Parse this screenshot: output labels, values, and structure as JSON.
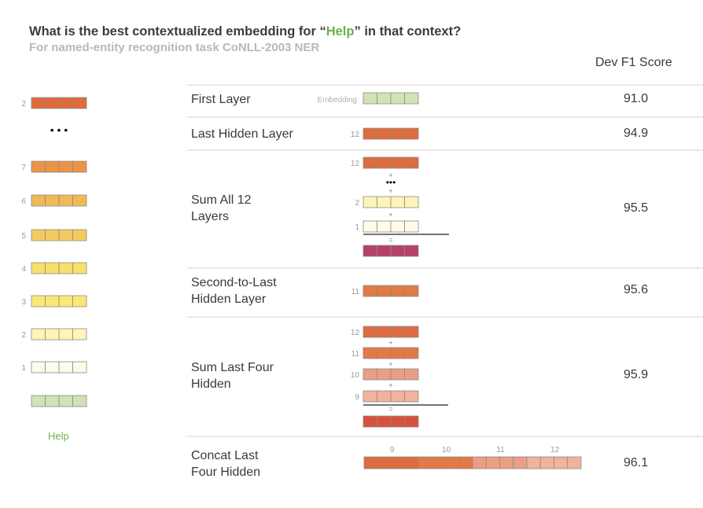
{
  "header": {
    "title_prefix": "What is the best contextualized embedding for “",
    "title_highlight": "Help",
    "title_suffix": "” in that context?",
    "subtitle": "For named-entity recognition task CoNLL-2003 NER",
    "score_header": "Dev F1 Score"
  },
  "colors": {
    "embedding": "#cfe3b4",
    "layer_1": "#fefbea",
    "layer_2": "#fdf4b8",
    "layer_3": "#fbe777",
    "layer_4": "#f8df69",
    "layer_5": "#f4cb5f",
    "layer_6": "#f1b956",
    "layer_7": "#ec9445",
    "layer_12": "#df6b3e",
    "layer_11": "#e37945",
    "layer_10": "#ec9e84",
    "layer_9": "#f0b49b",
    "sum_all_result": "#b5416a",
    "sum_last_four_result": "#d9513c",
    "highlight": "#6ab04c"
  },
  "stack": {
    "word": "Help",
    "dots": "• • •",
    "labels": [
      "2",
      "7",
      "6",
      "5",
      "4",
      "3",
      "2",
      "1"
    ]
  },
  "rows": [
    {
      "label": "First Layer",
      "score": "91.0",
      "embedding_label": "Embedding"
    },
    {
      "label": "Last Hidden Layer",
      "score": "94.9",
      "layer_label": "12"
    },
    {
      "label": "Sum All 12\nLayers",
      "score": "95.5",
      "layer_labels": [
        "12",
        "2",
        "1"
      ],
      "plus": "+",
      "equals": "=",
      "dots": "•••"
    },
    {
      "label": "Second-to-Last\nHidden Layer",
      "score": "95.6",
      "layer_label": "11"
    },
    {
      "label": "Sum Last Four\nHidden",
      "score": "95.9",
      "layer_labels": [
        "12",
        "11",
        "10",
        "9"
      ],
      "plus": "+",
      "equals": "="
    },
    {
      "label": "Concat Last\nFour Hidden",
      "score": "96.1",
      "segment_labels": [
        "9",
        "10",
        "11",
        "12"
      ]
    }
  ]
}
